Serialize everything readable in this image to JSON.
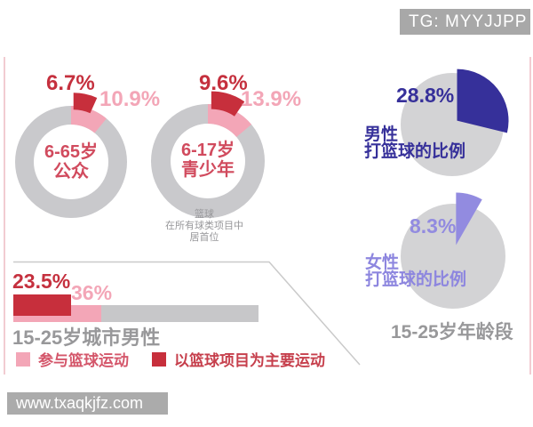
{
  "badge": {
    "text": "TG: MYYJJPP"
  },
  "watermark": {
    "text": "www.txaqkjfz.com"
  },
  "colors": {
    "red": "#c72f3c",
    "pink": "#f3a6b7",
    "navy": "#36309a",
    "lavender": "#928be0",
    "donut_gray": "#c9c9cc",
    "pie_gray": "#d3d3d5",
    "bar_gray": "#c7c7c9",
    "divider_gray": "#cacaca",
    "edge_pink": "#f2ccd2",
    "gray_text": "#98989a",
    "crimson_text": "#d14b5e",
    "badge_bg": "#a8a8a8"
  },
  "note_lines": [
    "篮球",
    "在所有球类项目中",
    "居首位"
  ],
  "pies_caption": "15-25岁年龄段",
  "chart_data": [
    {
      "type": "pie",
      "subtype": "donut",
      "title": "6-65岁公众",
      "center_label": [
        "6-65岁",
        "公众"
      ],
      "series": [
        {
          "name": "以篮球项目为主要运动",
          "value": 6.7,
          "display": "6.7%",
          "color": "#c72f3c",
          "exploded": true
        },
        {
          "name": "参与篮球运动",
          "value": 10.9,
          "display": "10.9%",
          "color": "#f3a6b7"
        }
      ],
      "rest_color": "#c9c9cc",
      "start_angle_deg": 0,
      "direction": "clockwise"
    },
    {
      "type": "pie",
      "subtype": "donut",
      "title": "6-17岁青少年",
      "center_label": [
        "6-17岁",
        "青少年"
      ],
      "series": [
        {
          "name": "以篮球项目为主要运动",
          "value": 9.6,
          "display": "9.6%",
          "color": "#c72f3c",
          "exploded": true
        },
        {
          "name": "参与篮球运动",
          "value": 13.9,
          "display": "13.9%",
          "color": "#f3a6b7"
        }
      ],
      "rest_color": "#c9c9cc",
      "start_angle_deg": 0,
      "direction": "clockwise"
    },
    {
      "type": "bar",
      "category": "15-25岁城市男性",
      "series": [
        {
          "name": "以篮球项目为主要运动",
          "value": 23.5,
          "display": "23.5%",
          "color": "#c72f3c"
        },
        {
          "name": "参与篮球运动",
          "value": 36,
          "display": "36%",
          "color": "#f3a6b7"
        }
      ],
      "xlim": [
        0,
        100
      ],
      "track_color": "#c7c7c9"
    },
    {
      "type": "pie",
      "title": [
        "男性",
        "打篮球的比例"
      ],
      "series": [
        {
          "name": "打篮球的比例",
          "value": 28.8,
          "display": "28.8%",
          "color": "#36309a",
          "exploded": true
        }
      ],
      "rest_color": "#d3d3d5",
      "start_angle_deg": 0,
      "direction": "clockwise"
    },
    {
      "type": "pie",
      "title": [
        "女性",
        "打篮球的比例"
      ],
      "series": [
        {
          "name": "打篮球的比例",
          "value": 8.3,
          "display": "8.3%",
          "color": "#928be0",
          "exploded": true
        }
      ],
      "rest_color": "#d3d3d5",
      "start_angle_deg": 0,
      "direction": "clockwise"
    }
  ]
}
